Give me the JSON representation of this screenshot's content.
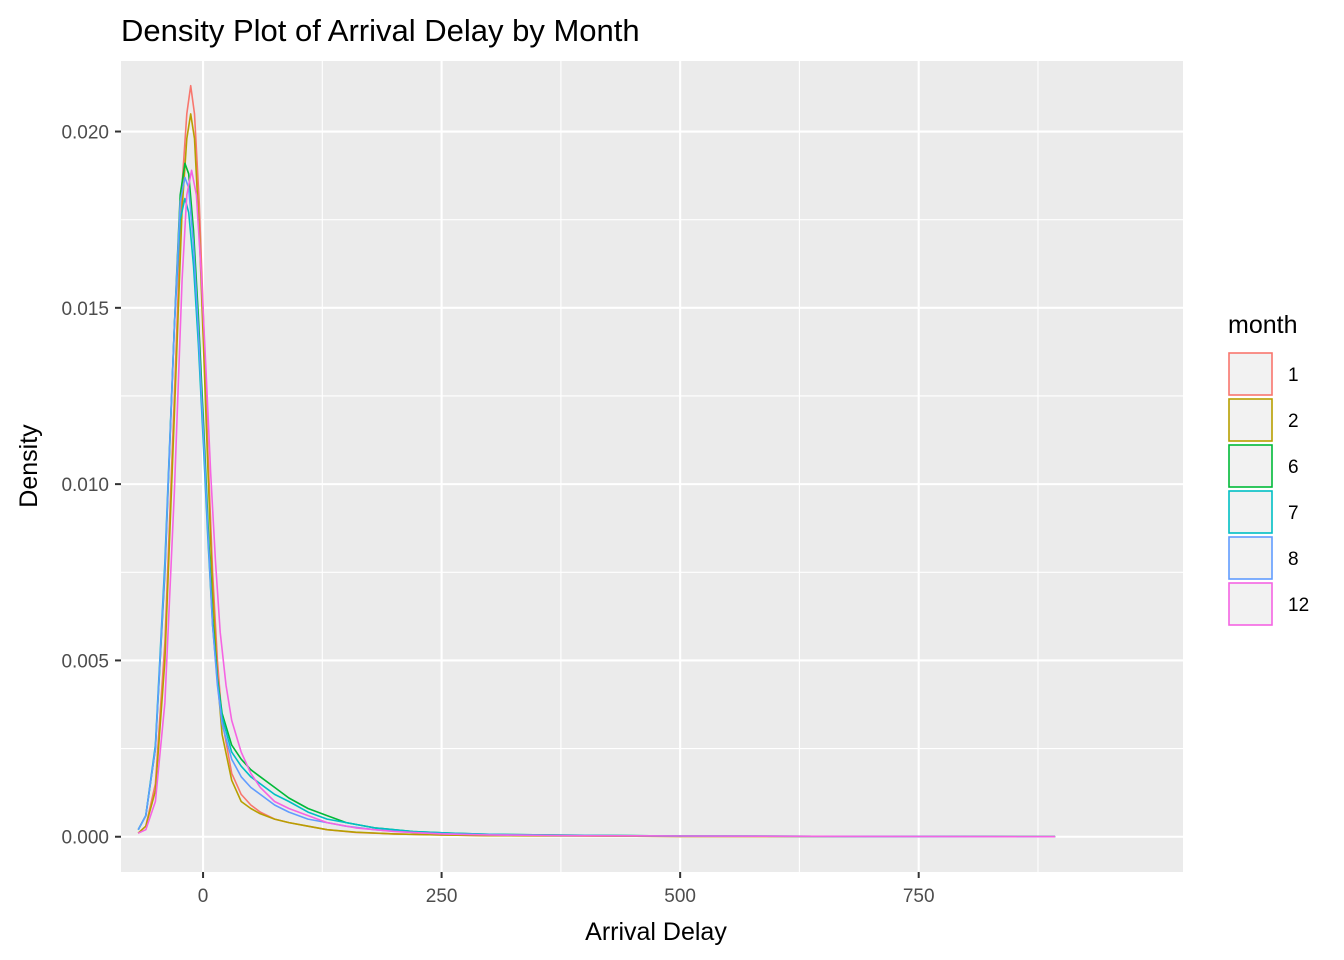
{
  "chart_data": {
    "type": "line",
    "title": "Density Plot of Arrival Delay by Month",
    "xlabel": "Arrival Delay",
    "ylabel": "Density",
    "xlim": [
      -86,
      1027
    ],
    "ylim": [
      -0.001,
      0.022
    ],
    "x_ticks": [
      0,
      250,
      500,
      750
    ],
    "x_tick_labels": [
      "0",
      "250",
      "500",
      "750"
    ],
    "y_ticks": [
      0.0,
      0.005,
      0.01,
      0.015,
      0.02
    ],
    "y_tick_labels": [
      "0.000",
      "0.005",
      "0.010",
      "0.015",
      "0.020"
    ],
    "grid": true,
    "legend": {
      "title": "month",
      "position": "right"
    },
    "series": [
      {
        "name": "1",
        "color": "#F8766D",
        "points": [
          [
            -68,
            0.0001
          ],
          [
            -60,
            0.0003
          ],
          [
            -50,
            0.0015
          ],
          [
            -40,
            0.0055
          ],
          [
            -30,
            0.0125
          ],
          [
            -22,
            0.0185
          ],
          [
            -17,
            0.0205
          ],
          [
            -13,
            0.0213
          ],
          [
            -9,
            0.0205
          ],
          [
            -4,
            0.018
          ],
          [
            0,
            0.015
          ],
          [
            5,
            0.011
          ],
          [
            10,
            0.0075
          ],
          [
            15,
            0.005
          ],
          [
            20,
            0.0033
          ],
          [
            30,
            0.0018
          ],
          [
            40,
            0.0012
          ],
          [
            50,
            0.0009
          ],
          [
            60,
            0.0007
          ],
          [
            75,
            0.0005
          ],
          [
            90,
            0.0004
          ],
          [
            110,
            0.0003
          ],
          [
            130,
            0.0002
          ],
          [
            160,
            0.00012
          ],
          [
            200,
            8e-05
          ],
          [
            250,
            5e-05
          ],
          [
            300,
            3e-05
          ],
          [
            400,
            2e-05
          ],
          [
            500,
            1e-05
          ],
          [
            700,
            1e-05
          ],
          [
            893,
            0.0
          ]
        ]
      },
      {
        "name": "2",
        "color": "#B79F00",
        "points": [
          [
            -68,
            0.0001
          ],
          [
            -60,
            0.0003
          ],
          [
            -50,
            0.0013
          ],
          [
            -40,
            0.005
          ],
          [
            -30,
            0.012
          ],
          [
            -22,
            0.0178
          ],
          [
            -17,
            0.0198
          ],
          [
            -13,
            0.0205
          ],
          [
            -9,
            0.0198
          ],
          [
            -4,
            0.0172
          ],
          [
            0,
            0.0142
          ],
          [
            5,
            0.0105
          ],
          [
            10,
            0.007
          ],
          [
            15,
            0.0045
          ],
          [
            20,
            0.0029
          ],
          [
            30,
            0.0016
          ],
          [
            40,
            0.001
          ],
          [
            50,
            0.0008
          ],
          [
            60,
            0.00065
          ],
          [
            75,
            0.0005
          ],
          [
            90,
            0.0004
          ],
          [
            110,
            0.0003
          ],
          [
            130,
            0.0002
          ],
          [
            160,
            0.00013
          ],
          [
            200,
            8e-05
          ],
          [
            250,
            5e-05
          ],
          [
            300,
            3e-05
          ],
          [
            400,
            2e-05
          ],
          [
            500,
            1e-05
          ],
          [
            700,
            1e-05
          ],
          [
            893,
            0.0
          ]
        ]
      },
      {
        "name": "6",
        "color": "#00BA38",
        "points": [
          [
            -68,
            0.0002
          ],
          [
            -60,
            0.0006
          ],
          [
            -50,
            0.0025
          ],
          [
            -40,
            0.0075
          ],
          [
            -30,
            0.0145
          ],
          [
            -24,
            0.0182
          ],
          [
            -19,
            0.0191
          ],
          [
            -15,
            0.0188
          ],
          [
            -10,
            0.0172
          ],
          [
            -5,
            0.0148
          ],
          [
            0,
            0.012
          ],
          [
            5,
            0.009
          ],
          [
            10,
            0.0062
          ],
          [
            15,
            0.0045
          ],
          [
            20,
            0.0035
          ],
          [
            30,
            0.0026
          ],
          [
            40,
            0.0022
          ],
          [
            50,
            0.0019
          ],
          [
            60,
            0.0017
          ],
          [
            75,
            0.0014
          ],
          [
            90,
            0.0011
          ],
          [
            110,
            0.0008
          ],
          [
            130,
            0.0006
          ],
          [
            150,
            0.0004
          ],
          [
            180,
            0.00025
          ],
          [
            220,
            0.00015
          ],
          [
            260,
            0.0001
          ],
          [
            300,
            7e-05
          ],
          [
            400,
            4e-05
          ],
          [
            500,
            2e-05
          ],
          [
            700,
            1e-05
          ],
          [
            893,
            0.0
          ]
        ]
      },
      {
        "name": "7",
        "color": "#00BFC4",
        "points": [
          [
            -68,
            0.0002
          ],
          [
            -60,
            0.0006
          ],
          [
            -50,
            0.0026
          ],
          [
            -40,
            0.0078
          ],
          [
            -30,
            0.0145
          ],
          [
            -24,
            0.0175
          ],
          [
            -19,
            0.0181
          ],
          [
            -15,
            0.0177
          ],
          [
            -10,
            0.0162
          ],
          [
            -5,
            0.014
          ],
          [
            0,
            0.0113
          ],
          [
            5,
            0.0085
          ],
          [
            10,
            0.006
          ],
          [
            15,
            0.0044
          ],
          [
            20,
            0.0034
          ],
          [
            30,
            0.0024
          ],
          [
            40,
            0.002
          ],
          [
            50,
            0.0017
          ],
          [
            60,
            0.0015
          ],
          [
            75,
            0.0012
          ],
          [
            90,
            0.001
          ],
          [
            110,
            0.0007
          ],
          [
            130,
            0.0005
          ],
          [
            150,
            0.0004
          ],
          [
            180,
            0.00025
          ],
          [
            220,
            0.00015
          ],
          [
            260,
            0.0001
          ],
          [
            300,
            7e-05
          ],
          [
            400,
            4e-05
          ],
          [
            500,
            2e-05
          ],
          [
            700,
            1e-05
          ],
          [
            893,
            0.0
          ]
        ]
      },
      {
        "name": "8",
        "color": "#619CFF",
        "points": [
          [
            -68,
            0.0002
          ],
          [
            -60,
            0.0006
          ],
          [
            -50,
            0.0025
          ],
          [
            -40,
            0.0076
          ],
          [
            -30,
            0.0145
          ],
          [
            -24,
            0.018
          ],
          [
            -19,
            0.0187
          ],
          [
            -15,
            0.0184
          ],
          [
            -10,
            0.0168
          ],
          [
            -5,
            0.0144
          ],
          [
            0,
            0.0116
          ],
          [
            5,
            0.0087
          ],
          [
            10,
            0.006
          ],
          [
            15,
            0.0043
          ],
          [
            20,
            0.0032
          ],
          [
            30,
            0.0022
          ],
          [
            40,
            0.0017
          ],
          [
            50,
            0.0014
          ],
          [
            60,
            0.0012
          ],
          [
            75,
            0.0009
          ],
          [
            90,
            0.0007
          ],
          [
            110,
            0.0005
          ],
          [
            130,
            0.0004
          ],
          [
            150,
            0.0003
          ],
          [
            180,
            0.0002
          ],
          [
            220,
            0.00012
          ],
          [
            260,
            8e-05
          ],
          [
            300,
            6e-05
          ],
          [
            400,
            3e-05
          ],
          [
            500,
            2e-05
          ],
          [
            700,
            1e-05
          ],
          [
            893,
            0.0
          ]
        ]
      },
      {
        "name": "12",
        "color": "#F564E3",
        "points": [
          [
            -68,
            0.0001
          ],
          [
            -60,
            0.0002
          ],
          [
            -50,
            0.001
          ],
          [
            -40,
            0.0038
          ],
          [
            -30,
            0.0098
          ],
          [
            -22,
            0.0158
          ],
          [
            -17,
            0.0182
          ],
          [
            -12,
            0.0189
          ],
          [
            -7,
            0.0182
          ],
          [
            -2,
            0.016
          ],
          [
            3,
            0.0133
          ],
          [
            8,
            0.0103
          ],
          [
            13,
            0.0078
          ],
          [
            18,
            0.0058
          ],
          [
            24,
            0.0043
          ],
          [
            30,
            0.0033
          ],
          [
            40,
            0.0024
          ],
          [
            50,
            0.0018
          ],
          [
            60,
            0.0014
          ],
          [
            75,
            0.001
          ],
          [
            90,
            0.0008
          ],
          [
            110,
            0.0006
          ],
          [
            130,
            0.0004
          ],
          [
            160,
            0.00025
          ],
          [
            200,
            0.00015
          ],
          [
            250,
            8e-05
          ],
          [
            300,
            5e-05
          ],
          [
            400,
            3e-05
          ],
          [
            500,
            2e-05
          ],
          [
            700,
            1e-05
          ],
          [
            893,
            0.0
          ]
        ]
      }
    ]
  }
}
